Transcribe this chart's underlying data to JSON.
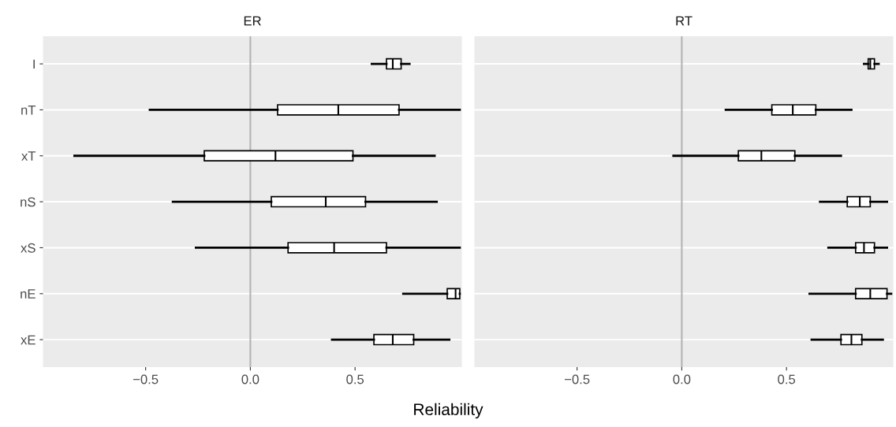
{
  "chart_data": [
    {
      "type": "box",
      "orientation": "horizontal",
      "title": "ER",
      "xlabel": "Reliability",
      "categories": [
        "I",
        "nT",
        "xT",
        "nS",
        "xS",
        "nE",
        "xE"
      ],
      "boxes": [
        {
          "low": 0.58,
          "q1": 0.65,
          "median": 0.68,
          "q3": 0.72,
          "high": 0.76
        },
        {
          "low": -0.48,
          "q1": 0.13,
          "median": 0.42,
          "q3": 0.71,
          "high": 1.0
        },
        {
          "low": -0.84,
          "q1": -0.22,
          "median": 0.12,
          "q3": 0.49,
          "high": 0.88
        },
        {
          "low": -0.37,
          "q1": 0.1,
          "median": 0.36,
          "q3": 0.55,
          "high": 0.89
        },
        {
          "low": -0.26,
          "q1": 0.18,
          "median": 0.4,
          "q3": 0.65,
          "high": 1.0
        },
        {
          "low": 0.73,
          "q1": 0.94,
          "median": 0.98,
          "q3": 1.0,
          "high": 1.0
        },
        {
          "low": 0.39,
          "q1": 0.59,
          "median": 0.68,
          "q3": 0.78,
          "high": 0.95
        }
      ],
      "xlim": [
        -0.99,
        1.01
      ],
      "xticks": [
        {
          "value": -0.5,
          "label": "−0.5"
        },
        {
          "value": 0,
          "label": "0.0"
        },
        {
          "value": 0.5,
          "label": "0.5"
        }
      ],
      "grid": "y",
      "ref_lines": [
        {
          "axis": "x",
          "value": 0,
          "color": "#b3b3b3"
        }
      ]
    },
    {
      "type": "box",
      "orientation": "horizontal",
      "title": "RT",
      "boxes": [
        {
          "low": 0.87,
          "q1": 0.89,
          "median": 0.9,
          "q3": 0.92,
          "high": 0.94
        },
        {
          "low": 0.21,
          "q1": 0.43,
          "median": 0.53,
          "q3": 0.64,
          "high": 0.81
        },
        {
          "low": -0.04,
          "q1": 0.27,
          "median": 0.38,
          "q3": 0.54,
          "high": 0.76
        },
        {
          "low": 0.66,
          "q1": 0.79,
          "median": 0.85,
          "q3": 0.9,
          "high": 0.98
        },
        {
          "low": 0.7,
          "q1": 0.83,
          "median": 0.87,
          "q3": 0.92,
          "high": 0.98
        },
        {
          "low": 0.61,
          "q1": 0.83,
          "median": 0.9,
          "q3": 0.98,
          "high": 1.0
        },
        {
          "low": 0.62,
          "q1": 0.76,
          "median": 0.81,
          "q3": 0.86,
          "high": 0.96
        }
      ],
      "xlim": [
        -0.99,
        1.01
      ],
      "xticks": [
        {
          "value": -0.5,
          "label": "−0.5"
        },
        {
          "value": 0,
          "label": "0.0"
        },
        {
          "value": 0.5,
          "label": "0.5"
        }
      ],
      "tick_labels": "x",
      "grid": "y",
      "ref_lines": [
        {
          "axis": "x",
          "value": 0,
          "color": "#b3b3b3"
        }
      ]
    }
  ]
}
